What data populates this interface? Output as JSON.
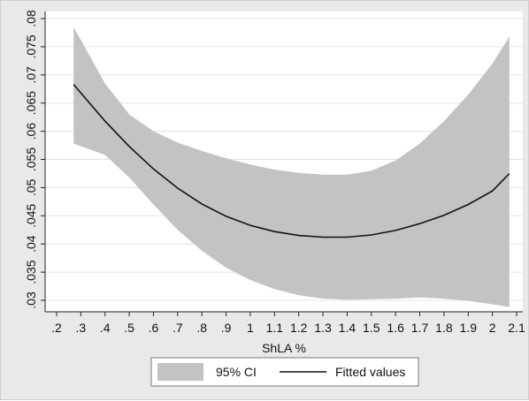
{
  "chart_data": {
    "type": "line",
    "title": "",
    "xlabel": "ShLA %",
    "ylabel": "",
    "xlim": [
      0.2,
      2.1
    ],
    "ylim": [
      0.03,
      0.08
    ],
    "grid": "horizontal",
    "x_ticks": [
      ".2",
      ".3",
      ".4",
      ".5",
      ".6",
      ".7",
      ".8",
      ".9",
      "1",
      "1.1",
      "1.2",
      "1.3",
      "1.4",
      "1.5",
      "1.6",
      "1.7",
      "1.8",
      "1.9",
      "2",
      "2.1"
    ],
    "x_tick_values": [
      0.2,
      0.3,
      0.4,
      0.5,
      0.6,
      0.7,
      0.8,
      0.9,
      1.0,
      1.1,
      1.2,
      1.3,
      1.4,
      1.5,
      1.6,
      1.7,
      1.8,
      1.9,
      2.0,
      2.1
    ],
    "y_ticks": [
      ".03",
      ".035",
      ".04",
      ".045",
      ".05",
      ".055",
      ".06",
      ".065",
      ".07",
      ".075",
      ".08"
    ],
    "y_tick_values": [
      0.03,
      0.035,
      0.04,
      0.045,
      0.05,
      0.055,
      0.06,
      0.065,
      0.07,
      0.075,
      0.08
    ],
    "x": [
      0.27,
      0.4,
      0.5,
      0.6,
      0.7,
      0.8,
      0.9,
      1.0,
      1.1,
      1.2,
      1.3,
      1.4,
      1.5,
      1.6,
      1.7,
      1.8,
      1.9,
      2.0,
      2.07
    ],
    "series": [
      {
        "name": "Fitted values",
        "type": "line",
        "color": "#111111",
        "values": [
          0.0683,
          0.0618,
          0.0573,
          0.0533,
          0.0499,
          0.0471,
          0.0449,
          0.0433,
          0.0422,
          0.0415,
          0.0412,
          0.0412,
          0.0416,
          0.0424,
          0.0436,
          0.0451,
          0.047,
          0.0494,
          0.0525
        ]
      },
      {
        "name": "95% CI",
        "type": "band",
        "color": "#c3c3c3",
        "upper": [
          0.0785,
          0.0685,
          0.063,
          0.06,
          0.058,
          0.0565,
          0.0552,
          0.0541,
          0.0532,
          0.0526,
          0.0523,
          0.0523,
          0.053,
          0.0548,
          0.0578,
          0.0618,
          0.0665,
          0.072,
          0.0768
        ],
        "lower": [
          0.0578,
          0.0558,
          0.0518,
          0.047,
          0.0425,
          0.0388,
          0.0358,
          0.0336,
          0.032,
          0.0309,
          0.0303,
          0.0301,
          0.0302,
          0.0303,
          0.0305,
          0.0303,
          0.0299,
          0.0293,
          0.0288
        ]
      }
    ],
    "legend": {
      "position": "bottom",
      "items": [
        {
          "label": "95% CI",
          "swatch": "band"
        },
        {
          "label": "Fitted values",
          "swatch": "line"
        }
      ]
    }
  }
}
